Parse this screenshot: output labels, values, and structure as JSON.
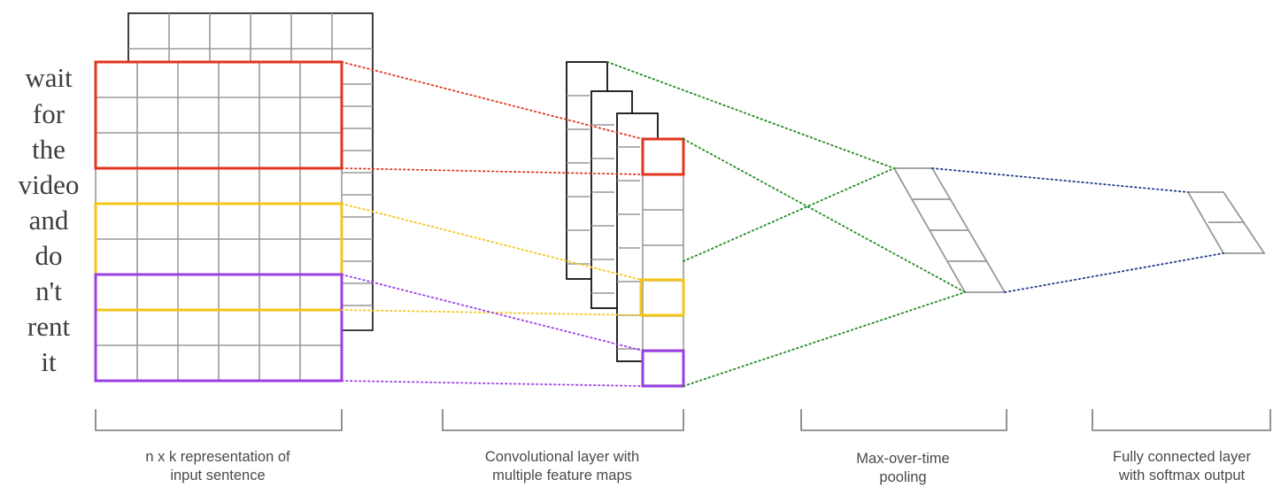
{
  "sentence": {
    "words": [
      "wait",
      "for",
      "the",
      "video",
      "and",
      "do",
      "n't",
      "rent",
      "it"
    ]
  },
  "captions": {
    "input": {
      "line1": "n x k representation of",
      "line2": "input sentence"
    },
    "conv": {
      "line1": "Convolutional layer with",
      "line2": "multiple feature maps"
    },
    "pool": {
      "line1": "Max-over-time",
      "line2": "pooling"
    },
    "fc": {
      "line1": "Fully connected layer",
      "line2": "with softmax output"
    }
  },
  "colors": {
    "filter_red": "#e0351e",
    "filter_yellow": "#f5c518",
    "filter_purple": "#9a3fe6",
    "pool_link_green": "#1f8a1f",
    "fc_link_blue": "#1f3a8a",
    "grid_gray": "#999999",
    "frame_black": "#111111"
  }
}
